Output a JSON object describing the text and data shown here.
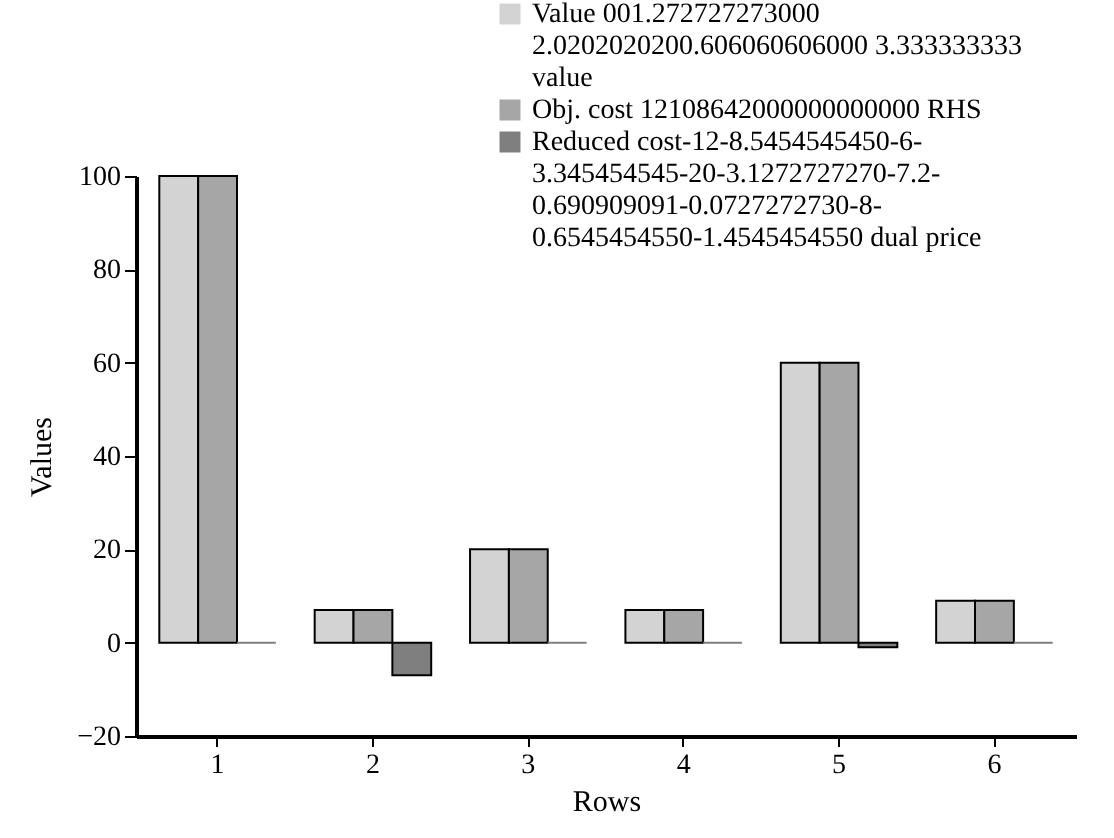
{
  "chart_data": {
    "type": "bar",
    "xlabel": "Rows",
    "ylabel": "Values",
    "categories": [
      "1",
      "2",
      "3",
      "4",
      "5",
      "6"
    ],
    "series": [
      {
        "name": "Value 001.272727273000 2.0202020200.606060606000 3.333333333 value",
        "color": "#d3d3d3",
        "values": [
          100,
          7,
          20,
          7,
          60,
          9
        ]
      },
      {
        "name": "Obj. cost 12108642000000000000 RHS",
        "color": "#a6a6a6",
        "values": [
          100,
          7,
          20,
          7,
          60,
          9
        ]
      },
      {
        "name": "Reduced cost-12-8.5454545450-6-3.345454545-20-3.1272727270-7.2-0.690909091-0.0727272730-8-0.6545454550-1.4545454550 dual price",
        "color": "#7f7f7f",
        "values": [
          0,
          -7,
          0,
          0,
          -1,
          0
        ]
      }
    ],
    "ylim": [
      -20,
      100
    ],
    "yticks": [
      -20,
      0,
      20,
      40,
      60,
      80,
      100
    ],
    "grid": false,
    "legend": "top right"
  }
}
